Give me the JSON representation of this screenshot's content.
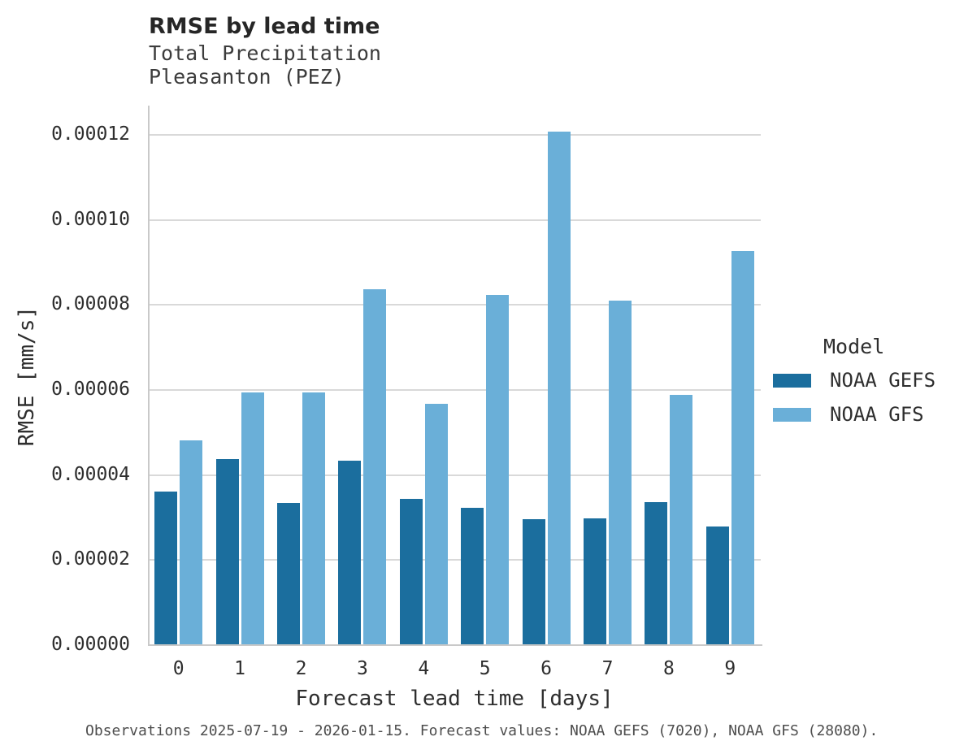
{
  "header": {
    "title": "RMSE by lead time",
    "subtitle_line1": "Total Precipitation",
    "subtitle_line2": "Pleasanton (PEZ)"
  },
  "legend": {
    "title": "Model",
    "items": [
      {
        "label": "NOAA GEFS",
        "color": "#1b6e9e"
      },
      {
        "label": "NOAA GFS",
        "color": "#6aafd8"
      }
    ]
  },
  "footer": {
    "caption": "Observations 2025-07-19 - 2026-01-15. Forecast values: NOAA GEFS (7020), NOAA GFS (28080)."
  },
  "chart_data": {
    "type": "bar",
    "title": "RMSE by lead time",
    "subtitle": [
      "Total Precipitation",
      "Pleasanton (PEZ)"
    ],
    "xlabel": "Forecast lead time [days]",
    "ylabel": "RMSE [mm/s]",
    "categories": [
      "0",
      "1",
      "2",
      "3",
      "4",
      "5",
      "6",
      "7",
      "8",
      "9"
    ],
    "series": [
      {
        "name": "NOAA GEFS",
        "color": "#1b6e9e",
        "values": [
          3.59e-05,
          4.35e-05,
          3.32e-05,
          4.32e-05,
          3.42e-05,
          3.21e-05,
          2.94e-05,
          2.96e-05,
          3.34e-05,
          2.78e-05
        ]
      },
      {
        "name": "NOAA GFS",
        "color": "#6aafd8",
        "values": [
          4.8e-05,
          5.93e-05,
          5.92e-05,
          8.36e-05,
          5.66e-05,
          8.21e-05,
          0.0001205,
          8.09e-05,
          5.87e-05,
          9.24e-05
        ]
      }
    ],
    "ylim": [
      0,
      0.0001267
    ],
    "yticks": [
      {
        "value": 0.0,
        "label": "0.00000"
      },
      {
        "value": 2e-05,
        "label": "0.00002"
      },
      {
        "value": 4e-05,
        "label": "0.00004"
      },
      {
        "value": 6e-05,
        "label": "0.00006"
      },
      {
        "value": 8e-05,
        "label": "0.00008"
      },
      {
        "value": 0.0001,
        "label": "0.00010"
      },
      {
        "value": 0.00012,
        "label": "0.00012"
      }
    ],
    "grid": "horizontal",
    "legend_title": "Model",
    "legend_position": "right"
  }
}
